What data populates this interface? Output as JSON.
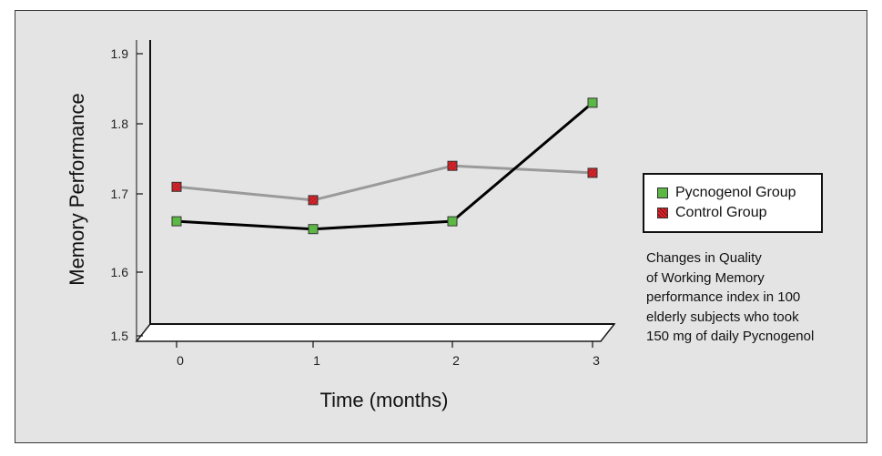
{
  "chart_data": {
    "type": "line",
    "title": "",
    "xlabel": "Time (months)",
    "ylabel": "Memory Performance",
    "x": [
      "0",
      "1",
      "2",
      "3"
    ],
    "y_ticks": [
      "1.5",
      "1.6",
      "1.7",
      "1.8",
      "1.9"
    ],
    "ylim": [
      1.5,
      1.9
    ],
    "y_scale": "nonuniform (1.5–1.6 gap larger than other tick intervals)",
    "grid": false,
    "legend_position": "right",
    "series": [
      {
        "name": "Pycnogenol Group",
        "values": [
          1.665,
          1.655,
          1.665,
          1.83
        ],
        "color": "#000000",
        "marker_color": "#5cb845"
      },
      {
        "name": "Control Group",
        "values": [
          1.71,
          1.692,
          1.74,
          1.73
        ],
        "color": "#9a9a9a",
        "marker_color": "#d8262c"
      }
    ],
    "annotation": [
      "Changes in Quality",
      "of Working Memory",
      "performance index in 100",
      "elderly subjects who took",
      "150 mg of daily Pycnogenol"
    ]
  }
}
